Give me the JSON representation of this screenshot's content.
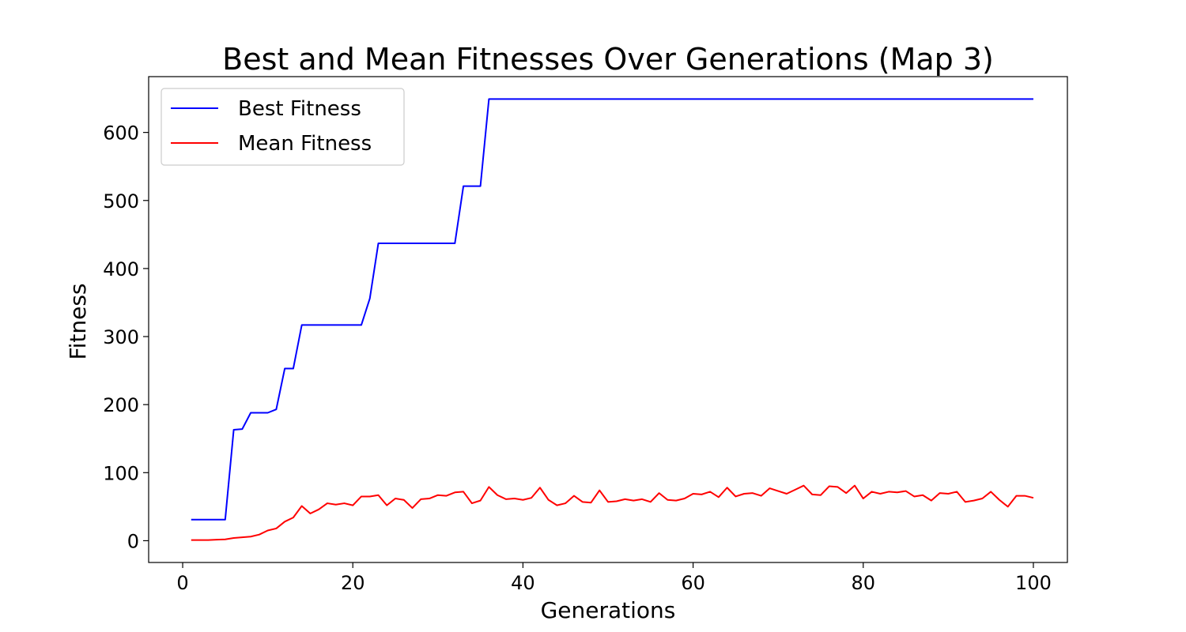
{
  "chart_data": {
    "type": "line",
    "title": "Best and Mean Fitnesses Over Generations (Map 3)",
    "xlabel": "Generations",
    "ylabel": "Fitness",
    "xlim": [
      -4,
      104
    ],
    "ylim": [
      -32,
      682
    ],
    "xticks": [
      0,
      20,
      40,
      60,
      80,
      100
    ],
    "yticks": [
      0,
      100,
      200,
      300,
      400,
      500,
      600
    ],
    "grid": false,
    "legend_position": "top-left",
    "x": [
      1,
      2,
      3,
      4,
      5,
      6,
      7,
      8,
      9,
      10,
      11,
      12,
      13,
      14,
      15,
      16,
      17,
      18,
      19,
      20,
      21,
      22,
      23,
      24,
      25,
      26,
      27,
      28,
      29,
      30,
      31,
      32,
      33,
      34,
      35,
      36,
      37,
      38,
      39,
      40,
      41,
      42,
      43,
      44,
      45,
      46,
      47,
      48,
      49,
      50,
      51,
      52,
      53,
      54,
      55,
      56,
      57,
      58,
      59,
      60,
      61,
      62,
      63,
      64,
      65,
      66,
      67,
      68,
      69,
      70,
      71,
      72,
      73,
      74,
      75,
      76,
      77,
      78,
      79,
      80,
      81,
      82,
      83,
      84,
      85,
      86,
      87,
      88,
      89,
      90,
      91,
      92,
      93,
      94,
      95,
      96,
      97,
      98,
      99,
      100
    ],
    "series": [
      {
        "name": "Best Fitness",
        "color": "#0000ff",
        "values": [
          31,
          31,
          31,
          31,
          31,
          163,
          164,
          188,
          188,
          188,
          193,
          253,
          253,
          317,
          317,
          317,
          317,
          317,
          317,
          317,
          317,
          356,
          437,
          437,
          437,
          437,
          437,
          437,
          437,
          437,
          437,
          437,
          521,
          521,
          521,
          649,
          649,
          649,
          649,
          649,
          649,
          649,
          649,
          649,
          649,
          649,
          649,
          649,
          649,
          649,
          649,
          649,
          649,
          649,
          649,
          649,
          649,
          649,
          649,
          649,
          649,
          649,
          649,
          649,
          649,
          649,
          649,
          649,
          649,
          649,
          649,
          649,
          649,
          649,
          649,
          649,
          649,
          649,
          649,
          649,
          649,
          649,
          649,
          649,
          649,
          649,
          649,
          649,
          649,
          649,
          649,
          649,
          649,
          649,
          649,
          649,
          649,
          649,
          649,
          649
        ]
      },
      {
        "name": "Mean Fitness",
        "color": "#ff0000",
        "values": [
          1,
          1,
          1,
          1.5,
          2,
          4,
          5,
          6,
          9,
          15,
          18,
          28,
          34,
          51,
          40,
          46,
          55,
          53,
          55,
          52,
          65,
          65,
          67,
          52,
          62,
          60,
          48,
          61,
          62,
          67,
          66,
          71,
          72,
          55,
          59,
          79,
          67,
          61,
          62,
          60,
          63,
          78,
          60,
          52,
          55,
          66,
          57,
          56,
          74,
          57,
          58,
          61,
          59,
          61,
          57,
          70,
          60,
          59,
          62,
          69,
          68,
          72,
          64,
          78,
          65,
          69,
          70,
          66,
          77,
          73,
          69,
          75,
          81,
          68,
          67,
          80,
          79,
          70,
          81,
          62,
          72,
          69,
          72,
          71,
          73,
          65,
          67,
          59,
          70,
          69,
          72,
          57,
          59,
          62,
          72,
          60,
          50,
          66,
          66,
          63
        ]
      }
    ]
  }
}
